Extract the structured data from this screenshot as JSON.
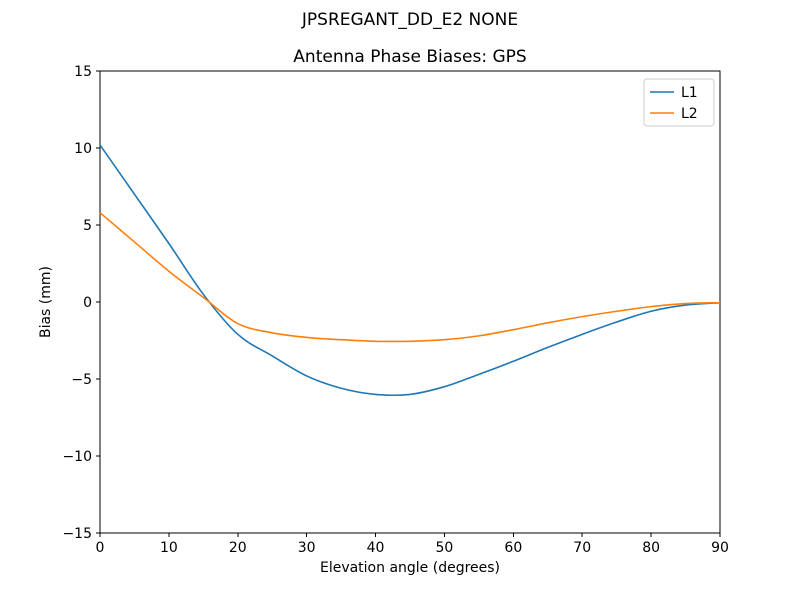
{
  "figure": {
    "suptitle": "JPSREGANT_DD_E2 NONE",
    "background": "#ffffff"
  },
  "chart_data": {
    "type": "line",
    "title": "Antenna Phase Biases: GPS",
    "xlabel": "Elevation angle (degrees)",
    "ylabel": "Bias (mm)",
    "xlim": [
      0,
      90
    ],
    "ylim": [
      -15,
      15
    ],
    "grid": false,
    "axis_color": "#000000",
    "xticks": {
      "values": [
        0,
        10,
        20,
        30,
        40,
        50,
        60,
        70,
        80,
        90
      ],
      "labels": [
        "0",
        "10",
        "20",
        "30",
        "40",
        "50",
        "60",
        "70",
        "80",
        "90"
      ]
    },
    "yticks": {
      "values": [
        15,
        10,
        5,
        0,
        -5,
        -10,
        -15
      ],
      "labels": [
        "15",
        "10",
        "5",
        "0",
        "−5",
        "−10",
        "−15"
      ]
    },
    "x": [
      0,
      5,
      10,
      15,
      20,
      25,
      30,
      35,
      40,
      45,
      50,
      55,
      60,
      65,
      70,
      75,
      80,
      85,
      90
    ],
    "series": [
      {
        "name": "L1",
        "color": "#1f77b4",
        "values": [
          10.2,
          7.0,
          3.8,
          0.5,
          -2.1,
          -3.5,
          -4.8,
          -5.6,
          -6.0,
          -6.0,
          -5.5,
          -4.7,
          -3.85,
          -2.95,
          -2.1,
          -1.3,
          -0.6,
          -0.2,
          -0.05
        ]
      },
      {
        "name": "L2",
        "color": "#ff7f0e",
        "values": [
          5.8,
          3.9,
          2.0,
          0.3,
          -1.4,
          -2.0,
          -2.3,
          -2.45,
          -2.55,
          -2.55,
          -2.45,
          -2.2,
          -1.8,
          -1.35,
          -0.95,
          -0.6,
          -0.3,
          -0.1,
          -0.05
        ]
      }
    ],
    "legend": {
      "position": "upper right",
      "border_color": "#cccccc",
      "background": "#ffffff"
    }
  }
}
